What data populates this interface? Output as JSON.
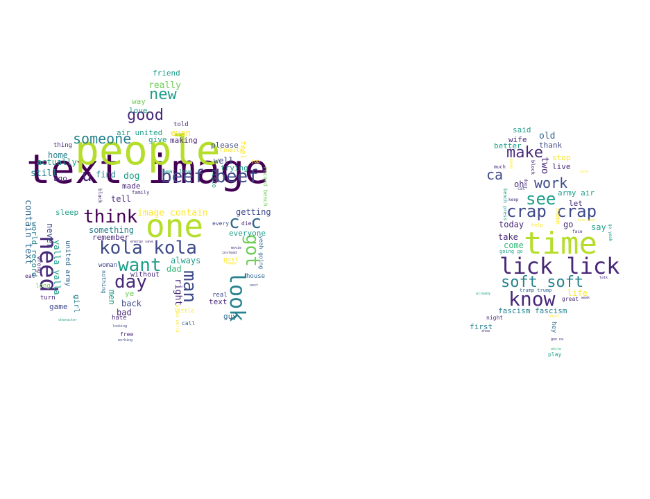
{
  "colors": {
    "dark_purple": "#440154",
    "purple": "#482878",
    "indigo": "#3e4a89",
    "blue": "#31688e",
    "teal_blue": "#26828e",
    "teal": "#1f9e89",
    "green": "#35b779",
    "light_green": "#6ece58",
    "yellow_green": "#b5de2b",
    "yellow": "#fde725"
  },
  "left_cloud": {
    "words": [
      "text image",
      "people",
      "one",
      "need",
      "beef beef",
      "think",
      "kola kola",
      "want",
      "day",
      "man",
      "look",
      "got",
      "someone",
      "good",
      "new",
      "c c",
      "u",
      "contain text",
      "image contain",
      "really",
      "friend",
      "well",
      "trying",
      "please",
      "even",
      "making",
      "give",
      "air united",
      "love",
      "way",
      "dog",
      "find",
      "tell",
      "made",
      "something",
      "remember",
      "still",
      "actually",
      "home",
      "thing",
      "ago",
      "sleep",
      "never",
      "world record",
      "yalla yalla",
      "united army",
      "girl",
      "game",
      "turn",
      "back",
      "bad",
      "hate",
      "ye",
      "men",
      "nothing",
      "without",
      "dad",
      "always",
      "right",
      "little",
      "told",
      "text",
      "guy",
      "getting",
      "everyone",
      "house",
      "yeah going",
      "record bench",
      "feel",
      "real",
      "post",
      "job",
      "free",
      "call",
      "cisco",
      "bear love",
      "family",
      "black",
      "woman",
      "long",
      "eat",
      "wrong",
      "finally",
      "die",
      "every",
      "next",
      "movie",
      "instead",
      "happy",
      "press world",
      "working",
      "looking",
      "character",
      "energy save"
    ]
  },
  "right_cloud": {
    "words": [
      "time",
      "lick lick",
      "know",
      "soft soft",
      "crap crap",
      "see",
      "work",
      "make",
      "ca",
      "two",
      "old",
      "wife",
      "said",
      "better",
      "thank",
      "stop",
      "live",
      "army air",
      "let",
      "oh",
      "today",
      "take",
      "come",
      "go",
      "say",
      "life",
      "name",
      "fascism fascism",
      "trump trump",
      "great",
      "first",
      "night",
      "hey",
      "play",
      "going go",
      "much",
      "help",
      "block",
      "door",
      "cat",
      "keep",
      "bench press",
      "mind",
      "must",
      "sure",
      "face",
      "love bear",
      "go yeah",
      "talk",
      "week",
      "already",
      "show",
      "white",
      "gon na"
    ]
  }
}
